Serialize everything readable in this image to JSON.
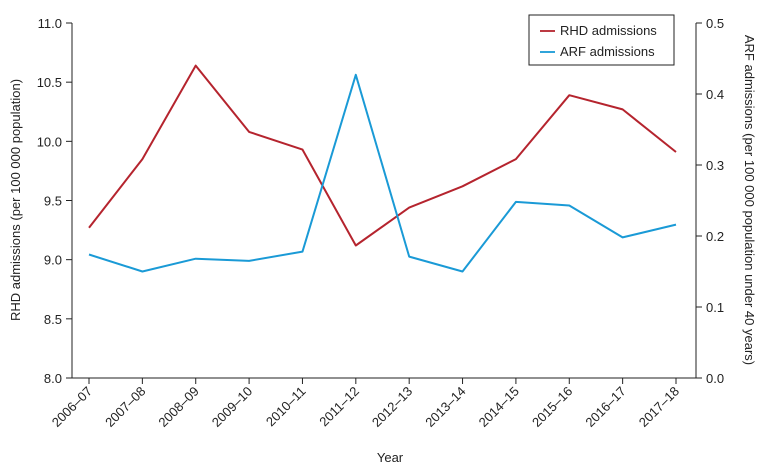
{
  "chart_data": {
    "type": "line",
    "categories": [
      "2006–07",
      "2007–08",
      "2008–09",
      "2009–10",
      "2010–11",
      "2011–12",
      "2012–13",
      "2013–14",
      "2014–15",
      "2015–16",
      "2016–17",
      "2017–18"
    ],
    "series": [
      {
        "name": "RHD admissions",
        "axis": "left",
        "color": "#b5242e",
        "values": [
          9.27,
          9.85,
          10.64,
          10.08,
          9.93,
          9.12,
          9.44,
          9.62,
          9.85,
          10.39,
          10.27,
          9.91
        ]
      },
      {
        "name": "ARF admissions",
        "axis": "right",
        "color": "#1a9ad6",
        "values": [
          0.174,
          0.15,
          0.168,
          0.165,
          0.178,
          0.427,
          0.171,
          0.15,
          0.248,
          0.243,
          0.198,
          0.216
        ]
      }
    ],
    "xlabel": "Year",
    "ylabel_left": "RHD admissions (per 100 000 population)",
    "ylabel_right": "ARF admissions (per 100 000 population under 40 years)",
    "ylim_left": [
      8.0,
      11.0
    ],
    "ylim_right": [
      0.0,
      0.5
    ],
    "yticks_left": [
      "8.0",
      "8.5",
      "9.0",
      "9.5",
      "10.0",
      "10.5",
      "11.0"
    ],
    "yticks_right": [
      "0.0",
      "0.1",
      "0.2",
      "0.3",
      "0.4",
      "0.5"
    ],
    "grid": false,
    "legend_position": "top-right"
  }
}
